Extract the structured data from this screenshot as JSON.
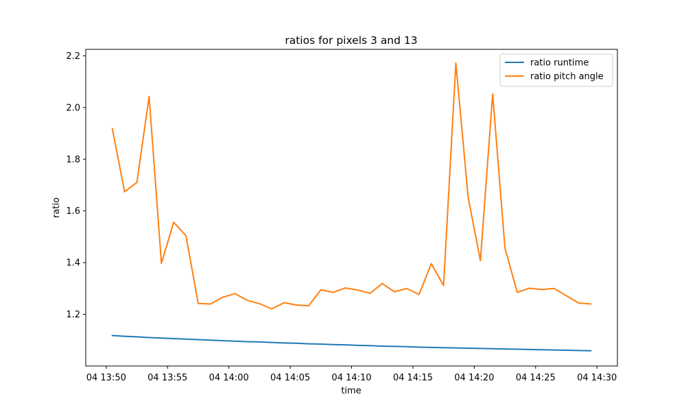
{
  "chart_data": {
    "type": "line",
    "title": "ratios for pixels 3 and 13",
    "xlabel": "time",
    "ylabel": "ratio",
    "x_time_format": "HH:MM",
    "x_date_prefix": "04",
    "xlim": [
      "13:48:20",
      "14:31:40"
    ],
    "ylim": [
      1.0,
      2.225
    ],
    "xticks": [
      "13:50",
      "13:55",
      "14:00",
      "14:05",
      "14:10",
      "14:15",
      "14:20",
      "14:25",
      "14:30"
    ],
    "xtick_labels": [
      "04 13:50",
      "04 13:55",
      "04 14:00",
      "04 14:05",
      "04 14:10",
      "04 14:15",
      "04 14:20",
      "04 14:25",
      "04 14:30"
    ],
    "yticks": [
      1.2,
      1.4,
      1.6,
      1.8,
      2.0,
      2.2
    ],
    "ytick_labels": [
      "1.2",
      "1.4",
      "1.6",
      "1.8",
      "2.0",
      "2.2"
    ],
    "grid": false,
    "legend_position": "top-right",
    "x": [
      "13:50:30",
      "13:51:30",
      "13:52:30",
      "13:53:30",
      "13:54:30",
      "13:55:30",
      "13:56:30",
      "13:57:30",
      "13:58:30",
      "13:59:30",
      "14:00:30",
      "14:01:30",
      "14:02:30",
      "14:03:30",
      "14:04:30",
      "14:05:30",
      "14:06:30",
      "14:07:30",
      "14:08:30",
      "14:09:30",
      "14:10:30",
      "14:11:30",
      "14:12:30",
      "14:13:30",
      "14:14:30",
      "14:15:30",
      "14:16:30",
      "14:17:30",
      "14:18:30",
      "14:19:30",
      "14:20:30",
      "14:21:30",
      "14:22:30",
      "14:23:30",
      "14:24:30",
      "14:25:30",
      "14:26:30",
      "14:27:30",
      "14:28:30",
      "14:29:30"
    ],
    "series": [
      {
        "name": "ratio runtime",
        "color": "#1f77b4",
        "values": [
          1.118,
          1.115,
          1.113,
          1.11,
          1.108,
          1.106,
          1.104,
          1.102,
          1.1,
          1.098,
          1.096,
          1.094,
          1.093,
          1.091,
          1.089,
          1.088,
          1.086,
          1.085,
          1.083,
          1.082,
          1.08,
          1.079,
          1.077,
          1.076,
          1.075,
          1.073,
          1.072,
          1.071,
          1.07,
          1.069,
          1.068,
          1.067,
          1.066,
          1.065,
          1.064,
          1.063,
          1.062,
          1.061,
          1.06,
          1.059
        ]
      },
      {
        "name": "ratio pitch angle",
        "color": "#ff7f0e",
        "values": [
          1.918,
          1.674,
          1.71,
          2.043,
          1.397,
          1.556,
          1.504,
          1.242,
          1.24,
          1.266,
          1.28,
          1.254,
          1.241,
          1.221,
          1.245,
          1.236,
          1.233,
          1.295,
          1.285,
          1.302,
          1.294,
          1.281,
          1.319,
          1.287,
          1.3,
          1.277,
          1.396,
          1.311,
          2.172,
          1.653,
          1.408,
          2.052,
          1.457,
          1.285,
          1.301,
          1.296,
          1.3,
          1.272,
          1.244,
          1.24
        ]
      }
    ]
  }
}
